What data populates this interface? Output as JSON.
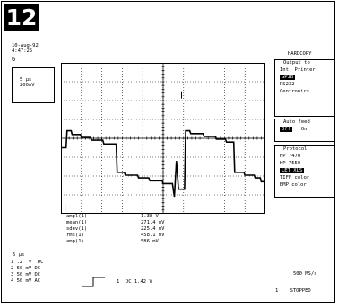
{
  "figure_number": "12",
  "header": {
    "date": "10-Aug-92",
    "time": "4:47:25",
    "trigger_marker": "6"
  },
  "measurement_box": {
    "line1": "5 μs",
    "line2": "200mV"
  },
  "right_panel": {
    "title": "HARDCOPY",
    "output_section": {
      "caption": "Output to",
      "items": [
        {
          "label": "Int. Printer",
          "selected": false
        },
        {
          "label": "GPIB",
          "selected": true
        },
        {
          "label": "RS232",
          "selected": false
        },
        {
          "label": "Centronics",
          "selected": false
        }
      ]
    },
    "auto_feed": {
      "caption": "Auto feed",
      "off_label": "Off",
      "on_label": "On",
      "selected": "Off"
    },
    "protocol_section": {
      "caption": "Protocol",
      "items": [
        {
          "label": "HP 7470",
          "selected": false
        },
        {
          "label": "HP 7550",
          "selected": false
        },
        {
          "label": "LET XLS",
          "selected": true
        },
        {
          "label": "TIFF color",
          "selected": false
        },
        {
          "label": "BMP color",
          "selected": false
        }
      ]
    }
  },
  "stats": {
    "labels": [
      "ampl(1)",
      "mean(1)",
      "sdev(1)",
      "rms(1)",
      "amp(1)"
    ],
    "values": [
      "1.38 V",
      "271.4 mV",
      "225.4 mV",
      "458.1 mV",
      "586 mV"
    ]
  },
  "bottom": {
    "timebase": "5 μs",
    "channels": [
      "1 .2  V  DC",
      "2 50 mV DC",
      "3 50 mV DC",
      "4 50 mV AC"
    ],
    "trigger_coupling": "DC 1.42 V",
    "sample_rate": "500 MS/s",
    "status": "STOPPED",
    "status_marker": "1"
  },
  "chart_data": {
    "type": "line",
    "title": "",
    "xlabel": "",
    "ylabel": "",
    "x_divisions": 10,
    "y_divisions": 8,
    "grid": true,
    "series": [
      {
        "values": [
          [
            0,
            3.5
          ],
          [
            0.25,
            3.5
          ],
          [
            0.3,
            4.4
          ],
          [
            0.5,
            4.4
          ],
          [
            0.55,
            4.2
          ],
          [
            0.95,
            4.2
          ],
          [
            1.0,
            4.05
          ],
          [
            1.45,
            4.05
          ],
          [
            1.5,
            3.9
          ],
          [
            2.05,
            3.9
          ],
          [
            2.1,
            3.7
          ],
          [
            2.7,
            3.7
          ],
          [
            2.75,
            2.2
          ],
          [
            3.1,
            2.2
          ],
          [
            3.15,
            2.05
          ],
          [
            3.75,
            2.05
          ],
          [
            3.8,
            1.9
          ],
          [
            4.3,
            1.9
          ],
          [
            4.35,
            1.75
          ],
          [
            4.95,
            1.75
          ],
          [
            5.0,
            1.6
          ],
          [
            5.45,
            1.6
          ],
          [
            5.55,
            0.9
          ],
          [
            5.65,
            2.8
          ],
          [
            5.75,
            1.3
          ],
          [
            6.05,
            1.3
          ],
          [
            6.1,
            4.4
          ],
          [
            6.3,
            4.4
          ],
          [
            6.35,
            4.25
          ],
          [
            6.95,
            4.25
          ],
          [
            7.0,
            4.1
          ],
          [
            7.55,
            4.1
          ],
          [
            7.6,
            3.95
          ],
          [
            8.05,
            3.95
          ],
          [
            8.1,
            3.8
          ],
          [
            8.45,
            3.8
          ],
          [
            8.5,
            2.2
          ],
          [
            8.95,
            2.2
          ],
          [
            9.0,
            2.05
          ],
          [
            9.45,
            2.05
          ],
          [
            9.5,
            1.9
          ],
          [
            9.75,
            1.9
          ],
          [
            9.8,
            1.7
          ],
          [
            10,
            1.7
          ]
        ]
      }
    ],
    "markers": [
      {
        "x": 0.2,
        "y": 0.3
      },
      {
        "x": 5.9,
        "y": 6.3
      }
    ]
  }
}
